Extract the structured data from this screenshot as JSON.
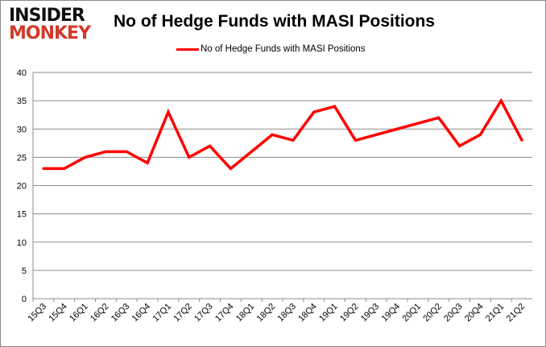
{
  "logo": {
    "line1": "INSIDER",
    "line2": "MONKEY"
  },
  "chart_data": {
    "type": "line",
    "title": "No of Hedge Funds with MASI Positions",
    "xlabel": "",
    "ylabel": "",
    "ylim": [
      0,
      40
    ],
    "yticks": [
      0,
      5,
      10,
      15,
      20,
      25,
      30,
      35,
      40
    ],
    "grid": true,
    "legend_position": "top",
    "categories": [
      "15Q3",
      "15Q4",
      "16Q1",
      "16Q2",
      "16Q3",
      "16Q4",
      "17Q1",
      "17Q2",
      "17Q3",
      "17Q4",
      "18Q1",
      "18Q2",
      "18Q3",
      "18Q4",
      "19Q1",
      "19Q2",
      "19Q3",
      "19Q4",
      "20Q1",
      "20Q2",
      "20Q3",
      "20Q4",
      "21Q1",
      "21Q2"
    ],
    "series": [
      {
        "name": "No of Hedge Funds with MASI Positions",
        "color": "#ff0000",
        "values": [
          23,
          23,
          25,
          26,
          26,
          24,
          33,
          25,
          27,
          23,
          26,
          29,
          28,
          33,
          34,
          28,
          29,
          30,
          31,
          32,
          27,
          29,
          35,
          28
        ]
      }
    ]
  }
}
